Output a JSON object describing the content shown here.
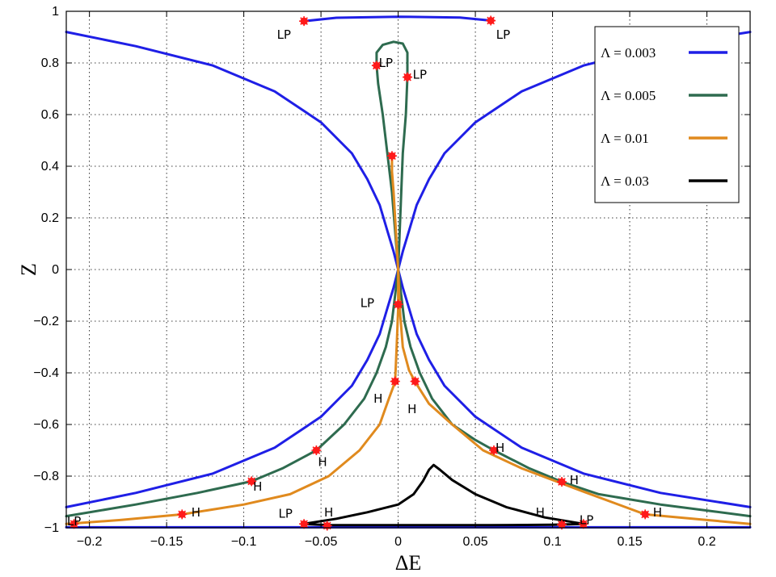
{
  "chart_data": {
    "type": "line",
    "title": "",
    "xlabel": "ΔE",
    "ylabel": "Z",
    "xlim": [
      -0.215,
      0.228
    ],
    "ylim": [
      -1.0,
      1.0
    ],
    "xticks": [
      -0.2,
      -0.15,
      -0.1,
      -0.05,
      0,
      0.05,
      0.1,
      0.15,
      0.2
    ],
    "xtick_labels": [
      "−0.2",
      "−0.15",
      "−0.1",
      "−0.05",
      "0",
      "0.05",
      "0.1",
      "0.15",
      "0.2"
    ],
    "yticks": [
      -1,
      -0.8,
      -0.6,
      -0.4,
      -0.2,
      0,
      0.2,
      0.4,
      0.6,
      0.8,
      1
    ],
    "ytick_labels": [
      "−1",
      "−0.8",
      "−0.6",
      "−0.4",
      "−0.2",
      "0",
      "0.2",
      "0.4",
      "0.6",
      "0.8",
      "1"
    ],
    "grid": true,
    "legend_position": "top-right",
    "series": [
      {
        "name": "Λ = 0.003",
        "color": "#1f1fe6",
        "segments": [
          [
            [
              -0.215,
              -0.92
            ],
            [
              -0.17,
              -0.865
            ],
            [
              -0.12,
              -0.79
            ],
            [
              -0.08,
              -0.69
            ],
            [
              -0.05,
              -0.57
            ],
            [
              -0.03,
              -0.45
            ],
            [
              -0.02,
              -0.35
            ],
            [
              -0.012,
              -0.25
            ],
            [
              -0.007,
              -0.15
            ],
            [
              -0.003,
              -0.07
            ],
            [
              0,
              0
            ],
            [
              0.003,
              -0.07
            ],
            [
              0.007,
              -0.15
            ],
            [
              0.012,
              -0.25
            ],
            [
              0.02,
              -0.35
            ],
            [
              0.03,
              -0.45
            ],
            [
              0.05,
              -0.57
            ],
            [
              0.08,
              -0.69
            ],
            [
              0.12,
              -0.79
            ],
            [
              0.17,
              -0.865
            ],
            [
              0.228,
              -0.92
            ]
          ],
          [
            [
              -0.215,
              0.92
            ],
            [
              -0.17,
              0.865
            ],
            [
              -0.12,
              0.79
            ],
            [
              -0.08,
              0.69
            ],
            [
              -0.05,
              0.57
            ],
            [
              -0.03,
              0.45
            ],
            [
              -0.02,
              0.35
            ],
            [
              -0.012,
              0.25
            ],
            [
              -0.007,
              0.15
            ],
            [
              -0.003,
              0.07
            ],
            [
              0,
              0
            ],
            [
              0.003,
              0.07
            ],
            [
              0.007,
              0.15
            ],
            [
              0.012,
              0.25
            ],
            [
              0.02,
              0.35
            ],
            [
              0.03,
              0.45
            ],
            [
              0.05,
              0.57
            ],
            [
              0.08,
              0.69
            ],
            [
              0.12,
              0.79
            ],
            [
              0.17,
              0.865
            ],
            [
              0.228,
              0.92
            ]
          ],
          [
            [
              -0.061,
              0.962
            ],
            [
              -0.04,
              0.975
            ],
            [
              0,
              0.979
            ],
            [
              0.04,
              0.976
            ],
            [
              0.06,
              0.964
            ]
          ],
          [
            [
              -0.215,
              -0.998
            ],
            [
              0.228,
              -0.998
            ]
          ]
        ],
        "markers": [
          [
            -0.061,
            0.962
          ],
          [
            0.06,
            0.964
          ]
        ]
      },
      {
        "name": "Λ = 0.005",
        "color": "#2e6b4f",
        "segments": [
          [
            [
              -0.215,
              -0.955
            ],
            [
              -0.17,
              -0.91
            ],
            [
              -0.13,
              -0.865
            ],
            [
              -0.095,
              -0.82
            ],
            [
              -0.075,
              -0.77
            ],
            [
              -0.053,
              -0.7
            ],
            [
              -0.035,
              -0.6
            ],
            [
              -0.022,
              -0.5
            ],
            [
              -0.014,
              -0.4
            ],
            [
              -0.008,
              -0.3
            ],
            [
              -0.004,
              -0.2
            ],
            [
              -0.002,
              -0.1
            ],
            [
              0,
              0
            ],
            [
              0.002,
              -0.1
            ],
            [
              0.004,
              -0.2
            ],
            [
              0.008,
              -0.3
            ],
            [
              0.014,
              -0.4
            ],
            [
              0.022,
              -0.5
            ],
            [
              0.035,
              -0.6
            ],
            [
              0.05,
              -0.66
            ],
            [
              0.062,
              -0.7
            ],
            [
              0.085,
              -0.77
            ],
            [
              0.106,
              -0.822
            ],
            [
              0.13,
              -0.87
            ],
            [
              0.17,
              -0.91
            ],
            [
              0.228,
              -0.955
            ]
          ],
          [
            [
              0,
              0
            ],
            [
              -0.002,
              0.15
            ],
            [
              -0.004,
              0.3
            ],
            [
              -0.007,
              0.45
            ],
            [
              -0.01,
              0.6
            ],
            [
              -0.013,
              0.72
            ],
            [
              -0.014,
              0.79
            ],
            [
              -0.014,
              0.84
            ],
            [
              -0.01,
              0.87
            ],
            [
              -0.003,
              0.882
            ],
            [
              0.003,
              0.875
            ],
            [
              0.006,
              0.84
            ],
            [
              0.006,
              0.745
            ],
            [
              0.005,
              0.6
            ],
            [
              0.003,
              0.45
            ],
            [
              0.002,
              0.3
            ],
            [
              0.001,
              0.15
            ],
            [
              0,
              0
            ]
          ]
        ],
        "markers": [
          [
            -0.014,
            0.79
          ],
          [
            0.006,
            0.745
          ],
          [
            -0.053,
            -0.7
          ],
          [
            -0.095,
            -0.82
          ],
          [
            0.062,
            -0.7
          ],
          [
            0.106,
            -0.822
          ]
        ]
      },
      {
        "name": "Λ = 0.01",
        "color": "#e08a1e",
        "segments": [
          [
            [
              -0.215,
              -0.985
            ],
            [
              -0.18,
              -0.97
            ],
            [
              -0.14,
              -0.948
            ],
            [
              -0.1,
              -0.91
            ],
            [
              -0.07,
              -0.87
            ],
            [
              -0.045,
              -0.8
            ],
            [
              -0.025,
              -0.7
            ],
            [
              -0.012,
              -0.6
            ],
            [
              -0.006,
              -0.5
            ],
            [
              -0.002,
              -0.435
            ],
            [
              -0.001,
              -0.3
            ],
            [
              0,
              -0.15
            ],
            [
              0,
              0
            ],
            [
              0.001,
              -0.15
            ],
            [
              0.003,
              -0.3
            ],
            [
              0.007,
              -0.39
            ],
            [
              0.011,
              -0.435
            ],
            [
              0.02,
              -0.52
            ],
            [
              0.035,
              -0.6
            ],
            [
              0.055,
              -0.7
            ],
            [
              0.08,
              -0.77
            ],
            [
              0.12,
              -0.86
            ],
            [
              0.16,
              -0.948
            ],
            [
              0.2,
              -0.97
            ],
            [
              0.228,
              -0.985
            ]
          ],
          [
            [
              0,
              0
            ],
            [
              -0.001,
              0.1
            ],
            [
              -0.002,
              0.2
            ],
            [
              -0.003,
              0.3
            ],
            [
              -0.004,
              0.38
            ],
            [
              -0.004,
              0.44
            ]
          ]
        ],
        "markers": [
          [
            -0.004,
            0.44
          ],
          [
            0,
            -0.135
          ],
          [
            -0.002,
            -0.433
          ],
          [
            0.011,
            -0.433
          ],
          [
            -0.14,
            -0.948
          ],
          [
            0.16,
            -0.948
          ],
          [
            -0.21,
            -0.985
          ]
        ]
      },
      {
        "name": "Λ = 0.03",
        "color": "#000000",
        "segments": [
          [
            [
              -0.061,
              -0.985
            ],
            [
              -0.04,
              -0.965
            ],
            [
              -0.02,
              -0.94
            ],
            [
              0,
              -0.91
            ],
            [
              0.01,
              -0.87
            ],
            [
              0.016,
              -0.82
            ],
            [
              0.02,
              -0.775
            ],
            [
              0.023,
              -0.757
            ],
            [
              0.027,
              -0.775
            ],
            [
              0.035,
              -0.815
            ],
            [
              0.05,
              -0.87
            ],
            [
              0.07,
              -0.92
            ],
            [
              0.095,
              -0.96
            ],
            [
              0.12,
              -0.985
            ],
            [
              0.1,
              -0.988
            ],
            [
              0.06,
              -0.99
            ],
            [
              0,
              -0.99
            ],
            [
              -0.045,
              -0.99
            ],
            [
              -0.061,
              -0.985
            ]
          ]
        ],
        "markers": [
          [
            -0.061,
            -0.985
          ],
          [
            -0.046,
            -0.992
          ],
          [
            0.106,
            -0.988
          ],
          [
            0.12,
            -0.985
          ]
        ]
      }
    ],
    "annotations": [
      {
        "text": "LP",
        "x": -0.074,
        "y": 0.91
      },
      {
        "text": "LP",
        "x": 0.068,
        "y": 0.91
      },
      {
        "text": "LP",
        "x": -0.008,
        "y": 0.8
      },
      {
        "text": "LP",
        "x": 0.014,
        "y": 0.755
      },
      {
        "text": "LP",
        "x": -0.02,
        "y": -0.13
      },
      {
        "text": "H",
        "x": -0.013,
        "y": -0.5
      },
      {
        "text": "H",
        "x": 0.009,
        "y": -0.54
      },
      {
        "text": "H",
        "x": -0.049,
        "y": -0.745
      },
      {
        "text": "H",
        "x": 0.066,
        "y": -0.69
      },
      {
        "text": "H",
        "x": -0.091,
        "y": -0.84
      },
      {
        "text": "H",
        "x": 0.114,
        "y": -0.815
      },
      {
        "text": "H",
        "x": -0.131,
        "y": -0.94
      },
      {
        "text": "H",
        "x": 0.168,
        "y": -0.94
      },
      {
        "text": "LP",
        "x": -0.21,
        "y": -0.975
      },
      {
        "text": "LP",
        "x": -0.073,
        "y": -0.945
      },
      {
        "text": "H",
        "x": -0.045,
        "y": -0.94
      },
      {
        "text": "H",
        "x": 0.092,
        "y": -0.94
      },
      {
        "text": "LP",
        "x": 0.122,
        "y": -0.97
      }
    ]
  }
}
